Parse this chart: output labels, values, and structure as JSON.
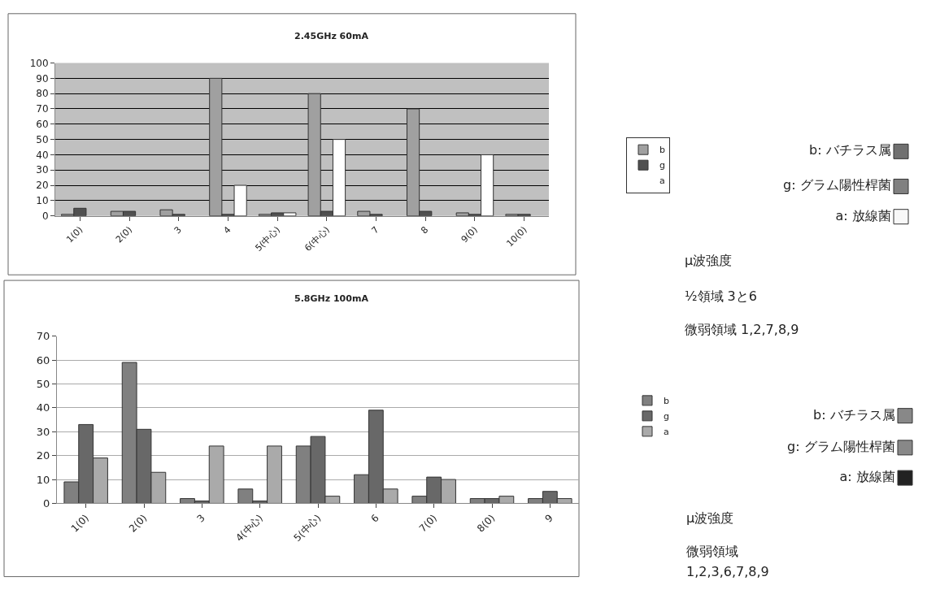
{
  "chart_data": [
    {
      "type": "bar",
      "title": "2.45GHz 60mA",
      "categories": [
        "1(0)",
        "2(0)",
        "3",
        "4",
        "5(中心)",
        "6(中心)",
        "7",
        "8",
        "9(0)",
        "10(0)"
      ],
      "series": [
        {
          "name": "b",
          "color": "#a0a0a0",
          "values": [
            1,
            3,
            4,
            90,
            1,
            80,
            3,
            70,
            2,
            1
          ]
        },
        {
          "name": "g",
          "color": "#505050",
          "values": [
            5,
            3,
            1,
            1,
            2,
            3,
            1,
            3,
            1,
            1
          ]
        },
        {
          "name": "a",
          "color": "#ffffff",
          "values": [
            0,
            0,
            0,
            20,
            2,
            50,
            0,
            0,
            40,
            0
          ]
        }
      ],
      "ylim": [
        0,
        100
      ],
      "yticks": [
        0,
        10,
        20,
        30,
        40,
        50,
        60,
        70,
        80,
        90,
        100
      ],
      "grid": "y",
      "legend": "right"
    },
    {
      "type": "other",
      "series": [
        {
          "name": "b: バチラス属",
          "color": "#707070"
        },
        {
          "name": "g: グラム陽性桿菌",
          "color": "#808080"
        },
        {
          "name": "a: 放線菌",
          "color": "#f8f8f8"
        }
      ],
      "annotations": [
        "μ波強度",
        "½領域 3と6",
        "微弱領域 1,2,7,8,9"
      ]
    },
    {
      "type": "bar",
      "title": "5.8GHz 100mA",
      "categories": [
        "1(0)",
        "2(0)",
        "3",
        "4(中心)",
        "5(中心)",
        "6",
        "7(0)",
        "8(0)",
        "9"
      ],
      "series": [
        {
          "name": "b",
          "color": "#808080",
          "values": [
            9,
            59,
            2,
            6,
            24,
            12,
            3,
            2,
            2
          ]
        },
        {
          "name": "g",
          "color": "#686868",
          "values": [
            33,
            31,
            1,
            1,
            28,
            39,
            11,
            2,
            5
          ]
        },
        {
          "name": "a",
          "color": "#aaaaaa",
          "values": [
            19,
            13,
            24,
            24,
            3,
            6,
            10,
            3,
            2
          ]
        }
      ],
      "ylim": [
        0,
        70
      ],
      "yticks": [
        0,
        10,
        20,
        30,
        40,
        50,
        60,
        70
      ],
      "grid": "y",
      "legend": "right"
    },
    {
      "type": "other",
      "series": [
        {
          "name": "b: バチラス属",
          "color": "#888888"
        },
        {
          "name": "g: グラム陽性桿菌",
          "color": "#888888"
        },
        {
          "name": "a: 放線菌",
          "color": "#222222"
        }
      ],
      "annotations": [
        "μ波強度",
        "微弱領域",
        "1,2,3,6,7,8,9"
      ]
    }
  ]
}
